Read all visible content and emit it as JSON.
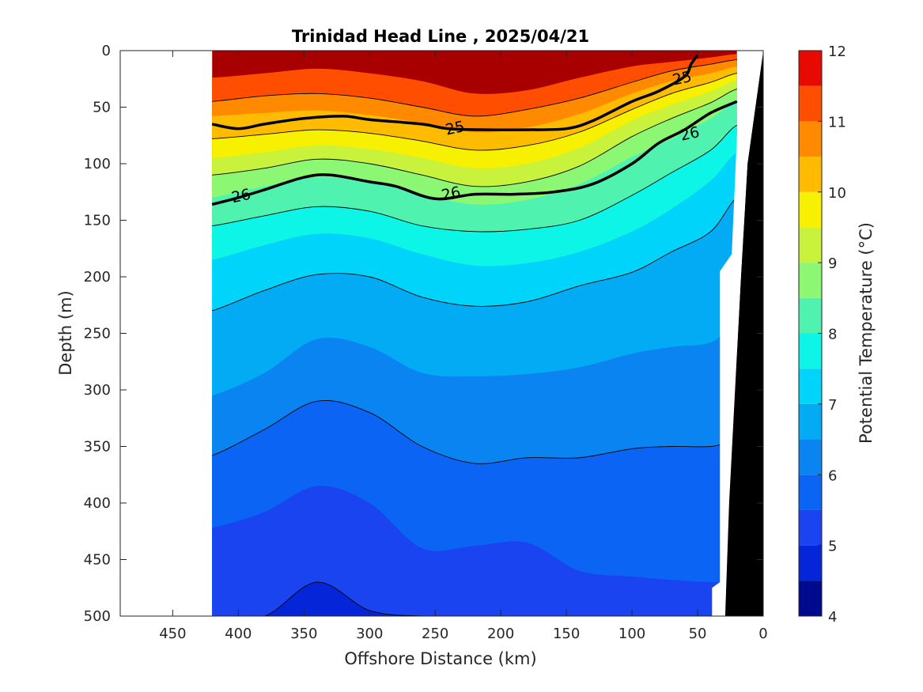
{
  "chart_data": {
    "type": "contour",
    "title": "Trinidad Head Line , 2025/04/21",
    "xlabel": "Offshore Distance (km)",
    "ylabel": "Depth (m)",
    "xlim": [
      490,
      0
    ],
    "ylim": [
      0,
      500
    ],
    "x_ticks": [
      "450",
      "400",
      "350",
      "300",
      "250",
      "200",
      "150",
      "100",
      "50",
      "0"
    ],
    "y_ticks": [
      "0",
      "50",
      "100",
      "150",
      "200",
      "250",
      "300",
      "350",
      "400",
      "450",
      "500"
    ],
    "colorbar": {
      "label": "Potential Temperature (°C)",
      "range": [
        4,
        12
      ],
      "ticks": [
        "4",
        "5",
        "6",
        "7",
        "8",
        "9",
        "10",
        "11",
        "12"
      ],
      "levels": [
        4,
        4.5,
        5,
        5.5,
        6,
        6.5,
        7,
        7.5,
        8,
        8.5,
        9,
        9.5,
        10,
        10.5,
        11,
        11.5,
        12
      ],
      "colors": [
        "#000a8f",
        "#0016b5",
        "#0525d8",
        "#1a44f0",
        "#0b64f3",
        "#0a84f0",
        "#03abf5",
        "#00d4fa",
        "#0cf5e6",
        "#50f2b0",
        "#8cf772",
        "#c8f23c",
        "#f7f000",
        "#ffbb00",
        "#ff8a00",
        "#ff4e00",
        "#e80a00",
        "#a80000"
      ]
    },
    "station_x_range": [
      420,
      20
    ],
    "isotherm_depths": [
      {
        "level": 11.5,
        "x": [
          420,
          380,
          340,
          300,
          260,
          220,
          180,
          140,
          100,
          70,
          40,
          20
        ],
        "y": [
          24,
          20,
          16,
          20,
          27,
          38,
          35,
          24,
          14,
          10,
          6,
          3
        ]
      },
      {
        "level": 11.0,
        "x": [
          420,
          380,
          340,
          300,
          260,
          220,
          180,
          140,
          100,
          70,
          40,
          20
        ],
        "y": [
          45,
          40,
          38,
          42,
          50,
          58,
          52,
          42,
          28,
          18,
          12,
          8
        ]
      },
      {
        "level": 10.5,
        "x": [
          420,
          380,
          340,
          300,
          260,
          220,
          180,
          140,
          100,
          70,
          40,
          20
        ],
        "y": [
          58,
          55,
          53,
          57,
          64,
          72,
          68,
          56,
          38,
          27,
          20,
          14
        ]
      },
      {
        "level": 10.0,
        "x": [
          420,
          380,
          340,
          300,
          260,
          220,
          180,
          140,
          100,
          70,
          40,
          20
        ],
        "y": [
          78,
          74,
          70,
          73,
          80,
          88,
          84,
          72,
          52,
          38,
          28,
          20
        ]
      },
      {
        "level": 9.5,
        "x": [
          420,
          380,
          340,
          300,
          260,
          220,
          180,
          140,
          100,
          70,
          40,
          20
        ],
        "y": [
          95,
          90,
          84,
          87,
          95,
          104,
          100,
          86,
          62,
          48,
          36,
          26
        ]
      },
      {
        "level": 9.0,
        "x": [
          420,
          380,
          340,
          300,
          260,
          220,
          180,
          140,
          100,
          70,
          40,
          20
        ],
        "y": [
          110,
          104,
          96,
          100,
          110,
          120,
          116,
          102,
          76,
          60,
          46,
          34
        ]
      },
      {
        "level": 8.5,
        "x": [
          420,
          380,
          340,
          300,
          260,
          220,
          180,
          140,
          100,
          70,
          40,
          20
        ],
        "y": [
          130,
          120,
          112,
          116,
          127,
          136,
          132,
          118,
          94,
          78,
          60,
          44
        ]
      },
      {
        "level": 8.0,
        "x": [
          420,
          380,
          340,
          300,
          260,
          220,
          180,
          140,
          100,
          70,
          40,
          20
        ],
        "y": [
          155,
          146,
          138,
          142,
          155,
          160,
          158,
          150,
          128,
          108,
          88,
          66
        ]
      },
      {
        "level": 7.5,
        "x": [
          420,
          380,
          340,
          300,
          260,
          220,
          180,
          140,
          100,
          70,
          40,
          20
        ],
        "y": [
          185,
          172,
          162,
          166,
          180,
          190,
          188,
          178,
          160,
          140,
          115,
          90
        ]
      },
      {
        "level": 7.0,
        "x": [
          420,
          380,
          340,
          300,
          260,
          220,
          180,
          140,
          100,
          70,
          40,
          20
        ],
        "y": [
          230,
          212,
          198,
          200,
          218,
          226,
          222,
          208,
          196,
          178,
          160,
          130
        ]
      },
      {
        "level": 6.5,
        "x": [
          420,
          380,
          340,
          300,
          260,
          220,
          180,
          140,
          100,
          70,
          40,
          20
        ],
        "y": [
          305,
          285,
          255,
          262,
          285,
          288,
          286,
          280,
          268,
          262,
          258,
          240
        ]
      },
      {
        "level": 6.0,
        "x": [
          420,
          380,
          340,
          300,
          260,
          220,
          180,
          140,
          100,
          70,
          40,
          20
        ],
        "y": [
          358,
          335,
          310,
          320,
          350,
          365,
          360,
          360,
          352,
          350,
          350,
          345
        ]
      },
      {
        "level": 5.5,
        "x": [
          420,
          380,
          340,
          300,
          260,
          220,
          180,
          140,
          100,
          70,
          40,
          20
        ],
        "y": [
          422,
          408,
          385,
          400,
          440,
          438,
          435,
          460,
          465,
          468,
          470,
          470
        ]
      },
      {
        "level": 5.0,
        "x": [
          420,
          380,
          340,
          300,
          260,
          220,
          180,
          140,
          100,
          70,
          40,
          20
        ],
        "y": [
          500,
          500,
          470,
          495,
          500,
          500,
          500,
          500,
          500,
          500,
          500,
          500
        ]
      }
    ],
    "contour_lines": [
      {
        "level": "25",
        "x": [
          420,
          400,
          380,
          350,
          320,
          300,
          260,
          240,
          210,
          180,
          150,
          130,
          100,
          80,
          60,
          55,
          50
        ],
        "y": [
          65,
          69,
          65,
          60,
          58,
          61,
          65,
          69,
          70,
          70,
          69,
          62,
          45,
          36,
          23,
          12,
          4
        ]
      },
      {
        "level": "26",
        "x": [
          420,
          400,
          380,
          350,
          330,
          300,
          280,
          250,
          220,
          190,
          160,
          130,
          100,
          80,
          60,
          40,
          20
        ],
        "y": [
          136,
          130,
          123,
          112,
          110,
          116,
          120,
          131,
          127,
          127,
          125,
          118,
          100,
          82,
          70,
          55,
          45
        ]
      }
    ],
    "contour_labels": [
      {
        "text": "25",
        "x": 235,
        "y": 68
      },
      {
        "text": "25",
        "x": 62,
        "y": 24
      },
      {
        "text": "26",
        "x": 398,
        "y": 128
      },
      {
        "text": "26",
        "x": 238,
        "y": 126
      },
      {
        "text": "26",
        "x": 56,
        "y": 73
      }
    ]
  }
}
